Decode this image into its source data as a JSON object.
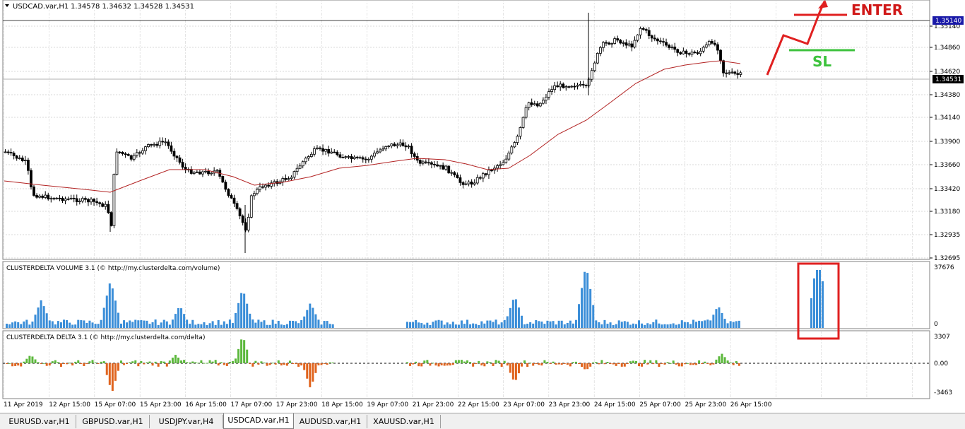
{
  "chart_header": {
    "collapse_icon": "triangle-down-icon",
    "symbol": "USDCAD.var,H1",
    "ohlc": "1.34578 1.34632 1.34528 1.34531"
  },
  "price_axis": {
    "labels": [
      "1.35140",
      "1.34860",
      "1.34620",
      "1.34380",
      "1.34140",
      "1.33900",
      "1.33660",
      "1.33420",
      "1.33180",
      "1.32935",
      "1.32695"
    ],
    "current_price": "1.34531",
    "level_price": "1.35140"
  },
  "annotations": {
    "enter": "ENTER",
    "sl": "SL"
  },
  "volume_panel": {
    "title": "CLUSTERDELTA VOLUME 3.1 (© http://my.clusterdelta.com/volume)",
    "axis_max": "37676",
    "axis_min": "0"
  },
  "delta_panel": {
    "title": "CLUSTERDELTA DELTA 3.1 (© http://my.clusterdelta.com/delta)",
    "axis_max": "3307",
    "axis_mid": "0.00",
    "axis_min": "-3463"
  },
  "time_axis": [
    "11 Apr 2019",
    "12 Apr 15:00",
    "15 Apr 07:00",
    "15 Apr 23:00",
    "16 Apr 15:00",
    "17 Apr 07:00",
    "17 Apr 23:00",
    "18 Apr 15:00",
    "19 Apr 07:00",
    "21 Apr 23:00",
    "22 Apr 15:00",
    "23 Apr 07:00",
    "23 Apr 23:00",
    "24 Apr 15:00",
    "25 Apr 07:00",
    "25 Apr 23:00",
    "26 Apr 15:00"
  ],
  "tabs": [
    "EURUSD.var,H1",
    "GBPUSD.var,H1",
    "USDJPY.var,H4",
    "USDCAD.var,H1",
    "AUDUSD.var,H1",
    "XAUUSD.var,H1"
  ],
  "active_tab": "USDCAD.var,H1",
  "colors": {
    "bull_volume": "#3b8ed8",
    "bull_delta": "#5cb83c",
    "bear_delta": "#e0641e",
    "moving_average": "#b22222",
    "enter": "#e02020",
    "sl": "#3cc23c",
    "highlight_box": "#e02020"
  }
}
